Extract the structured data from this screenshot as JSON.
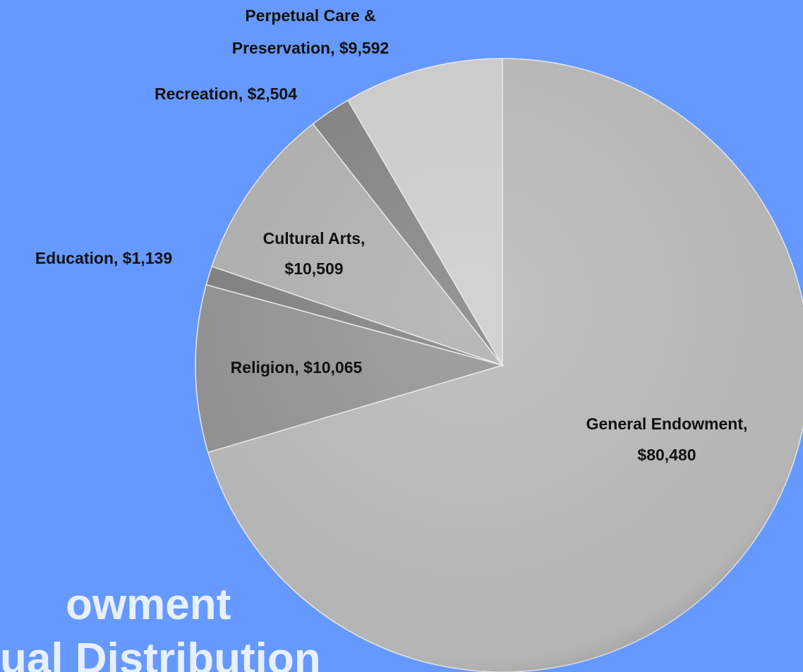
{
  "chart_data": {
    "type": "pie",
    "title_lines": [
      "owment",
      "ual Distribution"
    ],
    "values": [
      80480,
      10065,
      1139,
      10509,
      2504,
      9592
    ],
    "value_labels": [
      [
        "General Endowment,",
        "$80,480"
      ],
      [
        "Religion, $10,065"
      ],
      [
        "Education, $1,139"
      ],
      [
        "Cultural Arts,",
        "$10,509"
      ],
      [
        "Recreation, $2,504"
      ],
      [
        "Perpetual Care &",
        "Preservation, $9,592"
      ]
    ],
    "colors": [
      "#b4b4b4",
      "#8e8e8e",
      "#7c7c7c",
      "#ababab",
      "#7e7e7e",
      "#c9c9c9"
    ],
    "background": "#6699ff"
  }
}
